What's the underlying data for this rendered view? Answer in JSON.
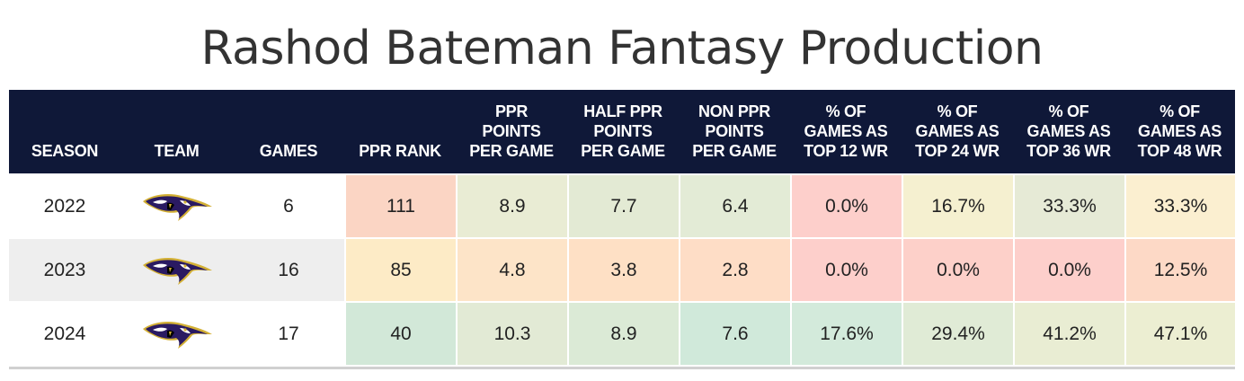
{
  "title": "Rashod Bateman Fantasy Production",
  "chart_data": {
    "type": "table",
    "title": "Rashod Bateman Fantasy Production",
    "columns": [
      "SEASON",
      "TEAM",
      "GAMES",
      "PPR RANK",
      "PPR POINTS PER GAME",
      "HALF PPR POINTS PER GAME",
      "NON PPR POINTS PER GAME",
      "% OF GAMES AS TOP 12 WR",
      "% OF GAMES AS TOP 24 WR",
      "% OF GAMES AS TOP 36 WR",
      "% OF GAMES AS TOP 48 WR"
    ],
    "header_lines": [
      [
        "SEASON"
      ],
      [
        "TEAM"
      ],
      [
        "GAMES"
      ],
      [
        "PPR RANK"
      ],
      [
        "PPR",
        "POINTS",
        "PER GAME"
      ],
      [
        "HALF PPR",
        "POINTS",
        "PER GAME"
      ],
      [
        "NON PPR",
        "POINTS",
        "PER GAME"
      ],
      [
        "% OF",
        "GAMES AS",
        "TOP 12 WR"
      ],
      [
        "% OF",
        "GAMES AS",
        "TOP 24 WR"
      ],
      [
        "% OF",
        "GAMES AS",
        "TOP 36 WR"
      ],
      [
        "% OF",
        "GAMES AS",
        "TOP 48 WR"
      ]
    ],
    "rows": [
      {
        "season": "2022",
        "team_icon": "ravens-logo-icon",
        "games": "6",
        "ppr_rank": "111",
        "ppr_ppg": "8.9",
        "half_ppg": "7.7",
        "non_ppg": "6.4",
        "top12": "0.0%",
        "top24": "16.7%",
        "top36": "33.3%",
        "top48": "33.3%"
      },
      {
        "season": "2023",
        "team_icon": "ravens-logo-icon",
        "games": "16",
        "ppr_rank": "85",
        "ppr_ppg": "4.8",
        "half_ppg": "3.8",
        "non_ppg": "2.8",
        "top12": "0.0%",
        "top24": "0.0%",
        "top36": "0.0%",
        "top48": "12.5%"
      },
      {
        "season": "2024",
        "team_icon": "ravens-logo-icon",
        "games": "17",
        "ppr_rank": "40",
        "ppr_ppg": "10.3",
        "half_ppg": "8.9",
        "non_ppg": "7.6",
        "top12": "17.6%",
        "top24": "29.4%",
        "top36": "41.2%",
        "top48": "47.1%"
      }
    ],
    "cell_colors": [
      [
        "#fbd5c4",
        "#e9ecd4",
        "#e3ead4",
        "#e3ebd6",
        "#fdcfcb",
        "#f5f0d0",
        "#e6ead6",
        "#fbefd0"
      ],
      [
        "#fdebc6",
        "#fde4c8",
        "#fee0c5",
        "#feddc6",
        "#fdcfcb",
        "#fdd0c9",
        "#fdcfcb",
        "#fdd9c6"
      ],
      [
        "#d2e8d8",
        "#e2ead5",
        "#dbead6",
        "#d0e9da",
        "#d3eadb",
        "#e0ebd6",
        "#e9edd3",
        "#eceed2"
      ]
    ]
  },
  "colors": {
    "header_bg": "#0f1838",
    "header_text": "#ffffff",
    "row_alt_bg": "#eeeeee"
  }
}
